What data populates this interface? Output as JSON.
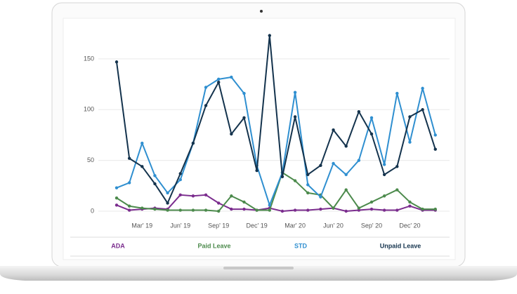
{
  "chart_data": {
    "type": "line",
    "categories": [
      null,
      null,
      "Mar' 19",
      null,
      null,
      "Jun' 19",
      null,
      null,
      "Sep' 19",
      null,
      null,
      "Dec' 19",
      null,
      null,
      "Mar' 20",
      null,
      null,
      "Jun' 20",
      null,
      null,
      "Sep' 20",
      null,
      null,
      "Dec' 20",
      null,
      null
    ],
    "series": [
      {
        "name": "ADA",
        "color": "#7b2d8e",
        "values": [
          6,
          1,
          2,
          3,
          2,
          16,
          15,
          16,
          8,
          2,
          2,
          1,
          3,
          0,
          1,
          1,
          2,
          3,
          0,
          1,
          2,
          1,
          1,
          5,
          1,
          1
        ]
      },
      {
        "name": "Paid Leave",
        "color": "#4c8a4c",
        "values": [
          13,
          5,
          3,
          2,
          1,
          1,
          1,
          1,
          0,
          15,
          9,
          1,
          1,
          38,
          30,
          18,
          16,
          3,
          21,
          3,
          9,
          15,
          21,
          9,
          2,
          2
        ]
      },
      {
        "name": "STD",
        "color": "#2f8fd0",
        "values": [
          23,
          28,
          67,
          35,
          18,
          31,
          67,
          122,
          130,
          132,
          116,
          45,
          6,
          38,
          117,
          26,
          14,
          47,
          36,
          50,
          92,
          46,
          116,
          68,
          121,
          75
        ]
      },
      {
        "name": "Unpaid Leave",
        "color": "#14334d",
        "values": [
          147,
          52,
          44,
          27,
          8,
          37,
          67,
          104,
          127,
          76,
          92,
          40,
          173,
          34,
          93,
          36,
          45,
          80,
          64,
          98,
          76,
          36,
          44,
          93,
          100,
          61
        ]
      }
    ],
    "ylim": [
      -5,
      180
    ],
    "yticks": [
      0,
      50,
      100,
      150
    ],
    "grid": true,
    "legend": "bottom"
  }
}
